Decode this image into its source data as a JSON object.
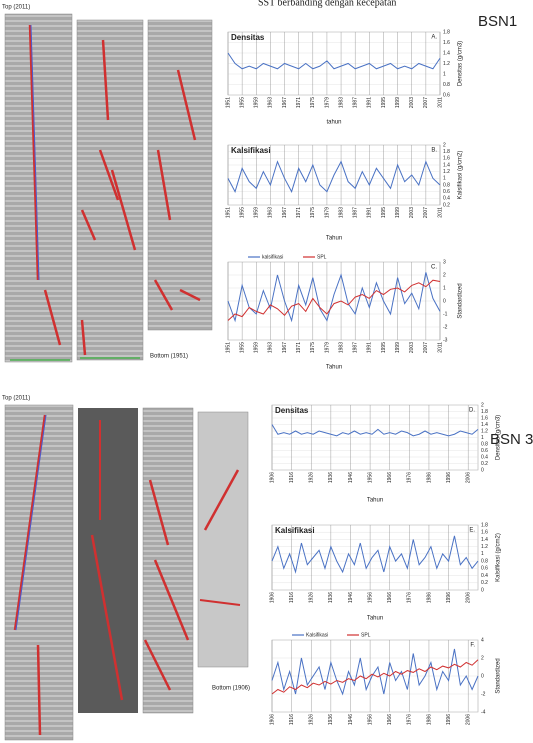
{
  "header_text": "SST berbanding dengan kecepatan",
  "panels": [
    {
      "label": "BSN1",
      "top_label": "Top (2011)",
      "bottom_label": "Bottom (1951)",
      "charts": [
        {
          "type": "line",
          "title": "Densitas",
          "letter": "A.",
          "ylabel": "Densitas (g/cm3)",
          "xlabel": "tahun",
          "xlim": [
            1951,
            2011
          ],
          "xticks": [
            1951,
            1955,
            1959,
            1963,
            1967,
            1971,
            1975,
            1979,
            1983,
            1987,
            1991,
            1995,
            1999,
            2003,
            2007,
            2011
          ],
          "ylim": [
            0.6,
            1.8
          ],
          "yticks": [
            0.6,
            0.8,
            1,
            1.2,
            1.4,
            1.6,
            1.8
          ],
          "x": [
            1951,
            1953,
            1955,
            1957,
            1959,
            1961,
            1963,
            1965,
            1967,
            1969,
            1971,
            1973,
            1975,
            1977,
            1979,
            1981,
            1983,
            1985,
            1987,
            1989,
            1991,
            1993,
            1995,
            1997,
            1999,
            2001,
            2003,
            2005,
            2007,
            2009,
            2011
          ],
          "series": [
            {
              "color": "#4a72c4",
              "values": [
                1.4,
                1.2,
                1.1,
                1.15,
                1.1,
                1.2,
                1.15,
                1.1,
                1.2,
                1.15,
                1.1,
                1.2,
                1.1,
                1.15,
                1.25,
                1.1,
                1.15,
                1.2,
                1.1,
                1.15,
                1.2,
                1.1,
                1.15,
                1.2,
                1.1,
                1.15,
                1.1,
                1.2,
                1.15,
                1.1,
                1.3
              ]
            }
          ]
        },
        {
          "type": "line",
          "title": "Kalsifikasi",
          "letter": "B.",
          "ylabel": "Kalsifikasi (g/cm2)",
          "xlabel": "Tahun",
          "xlim": [
            1951,
            2011
          ],
          "xticks": [
            1951,
            1955,
            1959,
            1963,
            1967,
            1971,
            1975,
            1979,
            1983,
            1987,
            1991,
            1995,
            1999,
            2003,
            2007,
            2011
          ],
          "ylim": [
            0.2,
            2
          ],
          "yticks": [
            0.2,
            0.4,
            0.6,
            0.8,
            1,
            1.2,
            1.4,
            1.6,
            1.8,
            2
          ],
          "x": [
            1951,
            1953,
            1955,
            1957,
            1959,
            1961,
            1963,
            1965,
            1967,
            1969,
            1971,
            1973,
            1975,
            1977,
            1979,
            1981,
            1983,
            1985,
            1987,
            1989,
            1991,
            1993,
            1995,
            1997,
            1999,
            2001,
            2003,
            2005,
            2007,
            2009,
            2011
          ],
          "series": [
            {
              "color": "#4a72c4",
              "values": [
                1.0,
                0.6,
                1.3,
                0.9,
                0.7,
                1.2,
                0.8,
                1.5,
                1.0,
                0.6,
                1.3,
                0.9,
                1.4,
                0.8,
                0.6,
                1.1,
                1.5,
                0.9,
                0.7,
                1.2,
                0.8,
                1.3,
                1.0,
                0.7,
                1.4,
                0.9,
                1.1,
                0.8,
                1.5,
                1.0,
                0.8
              ]
            }
          ]
        },
        {
          "type": "line",
          "letter": "C.",
          "ylabel": "Standardized",
          "xlabel": "Tahun",
          "xlim": [
            1951,
            2011
          ],
          "xticks": [
            1951,
            1955,
            1959,
            1963,
            1967,
            1971,
            1975,
            1979,
            1983,
            1987,
            1991,
            1995,
            1999,
            2003,
            2007,
            2011
          ],
          "ylim": [
            -3,
            3
          ],
          "yticks": [
            -3,
            -2,
            -1,
            0,
            1,
            2,
            3
          ],
          "x": [
            1951,
            1953,
            1955,
            1957,
            1959,
            1961,
            1963,
            1965,
            1967,
            1969,
            1971,
            1973,
            1975,
            1977,
            1979,
            1981,
            1983,
            1985,
            1987,
            1989,
            1991,
            1993,
            1995,
            1997,
            1999,
            2001,
            2003,
            2005,
            2007,
            2009,
            2011
          ],
          "series": [
            {
              "name": "kalsifikasi",
              "color": "#4a72c4",
              "values": [
                0,
                -1.5,
                1.2,
                -0.5,
                -1,
                0.8,
                -0.6,
                2,
                0,
                -1.5,
                1.2,
                -0.3,
                1.8,
                -0.6,
                -1.5,
                0.5,
                2,
                -0.2,
                -1,
                1,
                -0.5,
                1.4,
                0,
                -1,
                1.8,
                -0.2,
                0.6,
                -0.6,
                2.2,
                0.2,
                -0.8
              ]
            },
            {
              "name": "SPL",
              "color": "#d03030",
              "values": [
                -1.5,
                -1,
                -1.2,
                -0.5,
                -0.8,
                -1,
                -0.3,
                -0.6,
                -1.1,
                -0.4,
                -0.2,
                -0.8,
                0.2,
                -0.5,
                -1,
                -0.2,
                0,
                -0.3,
                0.3,
                0.5,
                0.2,
                0.8,
                0.5,
                0.9,
                1,
                0.7,
                1.2,
                1.4,
                1.1,
                1.6,
                1.5
              ]
            }
          ]
        }
      ]
    },
    {
      "label": "BSN 3",
      "top_label": "Top (2011)",
      "bottom_label": "Bottom (1906)",
      "charts": [
        {
          "type": "line",
          "title": "Densitas",
          "letter": "D.",
          "ylabel": "Densitas (g/cm3)",
          "xlabel": "Tahun",
          "xlim": [
            1906,
            2011
          ],
          "xticks": [
            1906,
            1916,
            1926,
            1936,
            1946,
            1956,
            1966,
            1976,
            1986,
            1996,
            2006
          ],
          "ylim": [
            0,
            2
          ],
          "yticks": [
            0,
            0.2,
            0.4,
            0.6,
            0.8,
            1,
            1.2,
            1.4,
            1.6,
            1.8,
            2
          ],
          "x": [
            1906,
            1909,
            1912,
            1915,
            1918,
            1921,
            1924,
            1927,
            1930,
            1933,
            1936,
            1939,
            1942,
            1945,
            1948,
            1951,
            1954,
            1957,
            1960,
            1963,
            1966,
            1969,
            1972,
            1975,
            1978,
            1981,
            1984,
            1987,
            1990,
            1993,
            1996,
            1999,
            2002,
            2005,
            2008,
            2011
          ],
          "series": [
            {
              "color": "#4a72c4",
              "values": [
                1.4,
                1.1,
                1.15,
                1.1,
                1.2,
                1.1,
                1.15,
                1.1,
                1.2,
                1.15,
                1.1,
                1.05,
                1.15,
                1.1,
                1.2,
                1.1,
                1.15,
                1.1,
                1.25,
                1.1,
                1.15,
                1.1,
                1.2,
                1.15,
                1.05,
                1.1,
                1.2,
                1.1,
                1.15,
                1.1,
                1.05,
                1.1,
                1.2,
                1.15,
                1.1,
                1.25
              ]
            }
          ]
        },
        {
          "type": "line",
          "title": "Kalsifikasi",
          "letter": "E.",
          "ylabel": "Kalsifikasi (g/cm2)",
          "xlabel": "Tahun",
          "xlim": [
            1906,
            2011
          ],
          "xticks": [
            1906,
            1916,
            1926,
            1936,
            1946,
            1956,
            1966,
            1976,
            1986,
            1996,
            2006
          ],
          "ylim": [
            0,
            1.8
          ],
          "yticks": [
            0,
            0.2,
            0.4,
            0.6,
            0.8,
            1,
            1.2,
            1.4,
            1.6,
            1.8
          ],
          "x": [
            1906,
            1909,
            1912,
            1915,
            1918,
            1921,
            1924,
            1927,
            1930,
            1933,
            1936,
            1939,
            1942,
            1945,
            1948,
            1951,
            1954,
            1957,
            1960,
            1963,
            1966,
            1969,
            1972,
            1975,
            1978,
            1981,
            1984,
            1987,
            1990,
            1993,
            1996,
            1999,
            2002,
            2005,
            2008,
            2011
          ],
          "series": [
            {
              "color": "#4a72c4",
              "values": [
                0.8,
                1.2,
                0.6,
                1.0,
                0.5,
                1.3,
                0.7,
                0.9,
                1.1,
                0.6,
                1.2,
                0.8,
                0.5,
                1.0,
                0.7,
                1.3,
                0.6,
                0.9,
                1.1,
                0.5,
                1.2,
                0.8,
                1.0,
                0.6,
                1.4,
                0.7,
                0.9,
                1.2,
                0.6,
                1.0,
                0.8,
                1.5,
                0.7,
                0.9,
                0.6,
                0.8
              ]
            }
          ]
        },
        {
          "type": "line",
          "letter": "F.",
          "ylabel": "Standardized",
          "xlim": [
            1906,
            2011
          ],
          "xticks": [
            1906,
            1916,
            1926,
            1936,
            1946,
            1956,
            1966,
            1976,
            1986,
            1996,
            2006
          ],
          "ylim": [
            -4,
            4
          ],
          "yticks": [
            -4,
            -2,
            0,
            2,
            4
          ],
          "x": [
            1906,
            1909,
            1912,
            1915,
            1918,
            1921,
            1924,
            1927,
            1930,
            1933,
            1936,
            1939,
            1942,
            1945,
            1948,
            1951,
            1954,
            1957,
            1960,
            1963,
            1966,
            1969,
            1972,
            1975,
            1978,
            1981,
            1984,
            1987,
            1990,
            1993,
            1996,
            1999,
            2002,
            2005,
            2008,
            2011
          ],
          "series": [
            {
              "name": "Kalsifikasi",
              "color": "#4a72c4",
              "values": [
                -0.5,
                1.5,
                -1.5,
                0.5,
                -2,
                2,
                -1,
                0,
                1,
                -1.5,
                1.5,
                -0.5,
                -2,
                0.5,
                -1,
                2,
                -1.5,
                0,
                1,
                -2,
                1.5,
                -0.5,
                0.5,
                -1.5,
                2.5,
                -1,
                0,
                1.5,
                -1.5,
                0.5,
                -0.5,
                3,
                -1,
                0,
                -1.5,
                0
              ]
            },
            {
              "name": "SPL",
              "color": "#d03030",
              "values": [
                -2,
                -1.5,
                -1.8,
                -1.2,
                -1.5,
                -1,
                -1.3,
                -0.8,
                -1,
                -0.6,
                -0.9,
                -0.5,
                -0.7,
                -0.3,
                -0.5,
                0,
                -0.3,
                0.2,
                -0.1,
                0.3,
                0,
                0.5,
                0.2,
                0.6,
                0.4,
                0.8,
                0.5,
                1,
                0.7,
                1.1,
                0.9,
                1.3,
                1,
                1.5,
                1.2,
                1.8
              ]
            }
          ]
        }
      ]
    }
  ]
}
